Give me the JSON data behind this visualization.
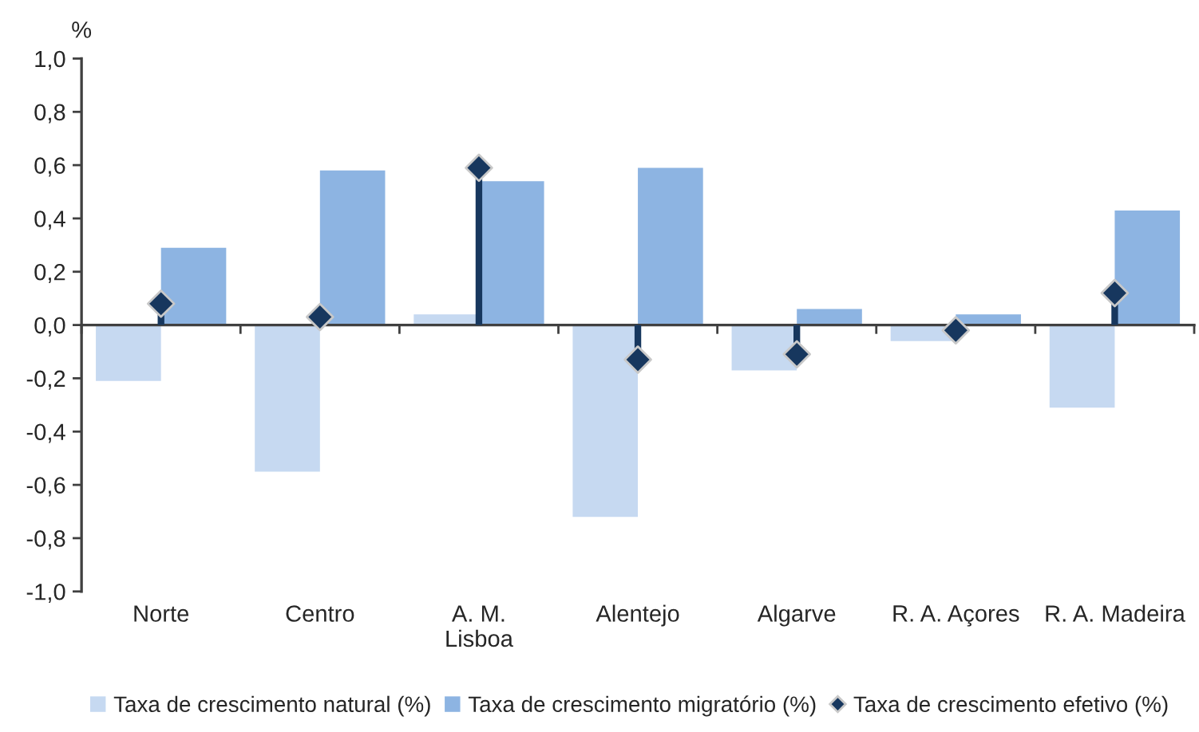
{
  "chart_data": {
    "type": "bar",
    "ylabel": "%",
    "categories": [
      "Norte",
      "Centro",
      "A. M.\nLisboa",
      "Alentejo",
      "Algarve",
      "R. A. Açores",
      "R. A. Madeira"
    ],
    "series": [
      {
        "name": "Taxa de crescimento natural (%)",
        "color": "#c6d9f1",
        "values": [
          -0.21,
          -0.55,
          0.04,
          -0.72,
          -0.17,
          -0.06,
          -0.31
        ]
      },
      {
        "name": "Taxa de crescimento migratório (%)",
        "color": "#8db4e2",
        "values": [
          0.29,
          0.58,
          0.54,
          0.59,
          0.06,
          0.04,
          0.43
        ]
      },
      {
        "name": "Taxa de crescimento efetivo (%)",
        "type": "lollipop",
        "color": "#17375e",
        "values": [
          0.08,
          0.03,
          0.59,
          -0.13,
          -0.11,
          -0.02,
          0.12
        ]
      }
    ],
    "ylim": [
      -1,
      1
    ],
    "yticks": [
      {
        "value": -1,
        "label": "-1,0"
      },
      {
        "value": -0.8,
        "label": "-0,8"
      },
      {
        "value": -0.6,
        "label": "-0,6"
      },
      {
        "value": -0.4,
        "label": "-0,4"
      },
      {
        "value": -0.2,
        "label": "-0,2"
      },
      {
        "value": 0,
        "label": "0,0"
      },
      {
        "value": 0.2,
        "label": "0,2"
      },
      {
        "value": 0.4,
        "label": "0,4"
      },
      {
        "value": 0.6,
        "label": "0,6"
      },
      {
        "value": 0.8,
        "label": "0,8"
      },
      {
        "value": 1,
        "label": "1,0"
      }
    ],
    "marker": "diamond",
    "legend": "bottom"
  }
}
